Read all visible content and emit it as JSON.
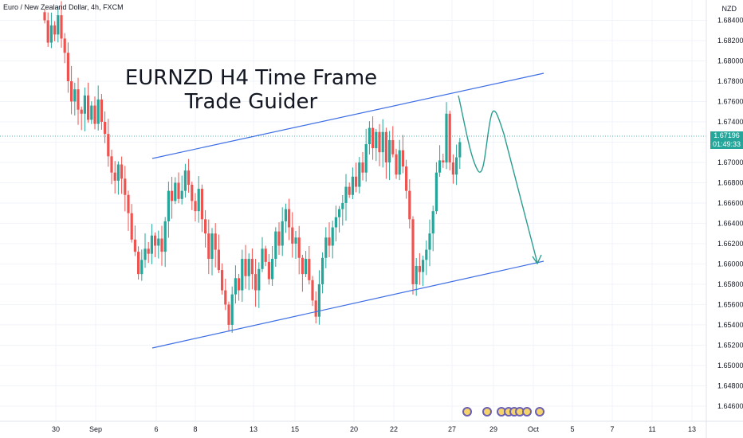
{
  "header": {
    "symbol": "Euro / New Zealand Dollar, 4h, FXCM",
    "currency": "NZD"
  },
  "annotation": {
    "title_line1": "EURNZD H4 Time Frame",
    "title_line2": "Trade Guider"
  },
  "price_label": {
    "price": "1.67196",
    "countdown": "01:49:33"
  },
  "colors": {
    "up": "#26a69a",
    "down": "#ef5350",
    "channel": "#3d6ee6",
    "arrow": "#2a9d8f",
    "price_line": "#26a69a",
    "event_icon": "#6b5fb5"
  },
  "chart_data": {
    "type": "candlestick",
    "interval": "4h",
    "ylim": [
      1.6445,
      1.686
    ],
    "y_ticks": [
      "1.68400",
      "1.68200",
      "1.68000",
      "1.67800",
      "1.67600",
      "1.67400",
      "1.67200",
      "1.67000",
      "1.66800",
      "1.66600",
      "1.66400",
      "1.66200",
      "1.66000",
      "1.65800",
      "1.65600",
      "1.65400",
      "1.65200",
      "1.65000",
      "1.64800",
      "1.64600"
    ],
    "x_ticks": [
      "30",
      "Sep",
      "6",
      "8",
      "13",
      "15",
      "20",
      "22",
      "27",
      "29",
      "Oct",
      "5",
      "7",
      "11",
      "13"
    ],
    "last_price": 1.67196,
    "close_series": [
      1.684,
      1.6818,
      1.6835,
      1.6826,
      1.6845,
      1.6822,
      1.6808,
      1.678,
      1.676,
      1.6772,
      1.6752,
      1.6748,
      1.6766,
      1.6742,
      1.6756,
      1.6738,
      1.6762,
      1.674,
      1.6728,
      1.6706,
      1.669,
      1.6682,
      1.6698,
      1.6684,
      1.6668,
      1.665,
      1.6624,
      1.6612,
      1.659,
      1.6604,
      1.6615,
      1.661,
      1.6628,
      1.6618,
      1.6625,
      1.6612,
      1.6642,
      1.6672,
      1.6662,
      1.668,
      1.6664,
      1.6672,
      1.6692,
      1.6678,
      1.6662,
      1.6652,
      1.6674,
      1.6644,
      1.663,
      1.6605,
      1.663,
      1.6614,
      1.6594,
      1.6574,
      1.656,
      1.654,
      1.657,
      1.6586,
      1.6574,
      1.6605,
      1.6588,
      1.6605,
      1.659,
      1.6574,
      1.6595,
      1.6615,
      1.6602,
      1.6585,
      1.6605,
      1.6632,
      1.6618,
      1.6642,
      1.6654,
      1.6636,
      1.662,
      1.6626,
      1.6606,
      1.659,
      1.6605,
      1.6584,
      1.6564,
      1.6548,
      1.658,
      1.6606,
      1.6626,
      1.6618,
      1.6636,
      1.6646,
      1.6654,
      1.666,
      1.6676,
      1.6668,
      1.6686,
      1.6676,
      1.67,
      1.669,
      1.6718,
      1.6734,
      1.6714,
      1.673,
      1.671,
      1.673,
      1.67,
      1.6722,
      1.6708,
      1.6688,
      1.6712,
      1.6696,
      1.6672,
      1.6644,
      1.658,
      1.6598,
      1.6592,
      1.6604,
      1.6614,
      1.663,
      1.6652,
      1.669,
      1.6702,
      1.67,
      1.6748,
      1.67,
      1.6688,
      1.6705,
      1.672
    ],
    "channel_upper": [
      [
        "2023-09-05",
        1.6701
      ],
      [
        "2023-09-28",
        1.6782
      ]
    ],
    "channel_lower": [
      [
        "2023-09-05",
        1.6515
      ],
      [
        "2023-09-28",
        1.6595
      ]
    ],
    "projection": "down",
    "event_markers": 7
  }
}
